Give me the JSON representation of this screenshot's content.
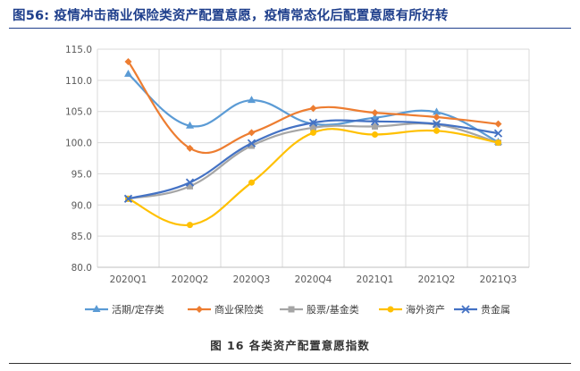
{
  "title": "图56:  疫情冲击商业保险类资产配置意愿，疫情常态化后配置意愿有所好转",
  "caption": "图 16  各类资产配置意愿指数",
  "chart_data": {
    "type": "line",
    "categories": [
      "2020Q1",
      "2020Q2",
      "2020Q3",
      "2020Q4",
      "2021Q1",
      "2021Q2",
      "2021Q3"
    ],
    "ylim": [
      80.0,
      115.0
    ],
    "yticks": [
      "80.0",
      "85.0",
      "90.0",
      "95.0",
      "100.0",
      "105.0",
      "110.0",
      "115.0"
    ],
    "grid": true,
    "legend": "bottom",
    "series": [
      {
        "name": "活期/定存类",
        "color": "#5b9bd5",
        "marker": "triangle",
        "values": [
          111.0,
          102.7,
          106.8,
          103.0,
          104.0,
          104.9,
          100.1
        ]
      },
      {
        "name": "商业保险类",
        "color": "#ed7d31",
        "marker": "diamond",
        "values": [
          113.0,
          99.1,
          101.6,
          105.5,
          104.8,
          104.1,
          103.0
        ]
      },
      {
        "name": "股票/基金类",
        "color": "#a5a5a5",
        "marker": "square",
        "values": [
          91.0,
          93.0,
          99.5,
          102.4,
          102.6,
          102.9,
          100.0
        ]
      },
      {
        "name": "海外资产",
        "color": "#ffc000",
        "marker": "circle",
        "values": [
          91.0,
          86.8,
          93.6,
          101.6,
          101.3,
          101.9,
          100.0
        ]
      },
      {
        "name": "贵金属",
        "color": "#4472c4",
        "marker": "x",
        "values": [
          91.0,
          93.6,
          99.9,
          103.2,
          103.4,
          103.0,
          101.5
        ]
      }
    ]
  }
}
